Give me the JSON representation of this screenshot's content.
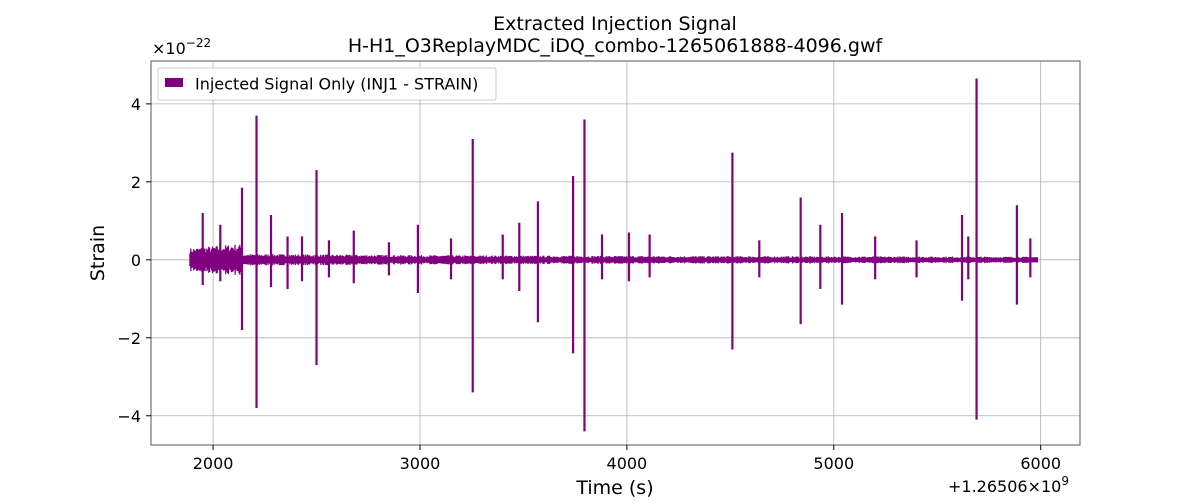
{
  "chart_data": {
    "type": "line",
    "title": "Extracted Injection Signal",
    "subtitle": "H-H1_O3ReplayMDC_iDQ_combo-1265061888-4096.gwf",
    "xlabel": "Time (s)",
    "ylabel": "Strain",
    "x_offset_label": "+1.26506×10",
    "x_offset_exponent": "9",
    "y_scale_label": "×10",
    "y_scale_exponent": "−22",
    "xlim": [
      1700,
      6190
    ],
    "ylim": [
      -4.75,
      5.1
    ],
    "x_ticks": [
      2000,
      3000,
      4000,
      5000,
      6000
    ],
    "y_ticks": [
      -4,
      -2,
      0,
      2,
      4
    ],
    "y_tick_labels": [
      "−4",
      "−2",
      "0",
      "2",
      "4"
    ],
    "grid": true,
    "legend_position": "top-left",
    "color": "#800080",
    "series": [
      {
        "name": "Injected Signal Only (INJ1 - STRAIN)",
        "x_range": [
          1888,
          5984
        ],
        "background": [
          {
            "x": 1888,
            "amp": 0.3
          },
          {
            "x": 2100,
            "amp": 0.4
          },
          {
            "x": 2135,
            "amp": 0.4
          },
          {
            "x": 2140,
            "amp": 0.15
          },
          {
            "x": 3000,
            "amp": 0.12
          },
          {
            "x": 4000,
            "amp": 0.1
          },
          {
            "x": 5000,
            "amp": 0.09
          },
          {
            "x": 5984,
            "amp": 0.08
          }
        ],
        "spikes": [
          {
            "x": 1950,
            "top": 1.2,
            "bottom": -0.65
          },
          {
            "x": 2035,
            "top": 0.9,
            "bottom": -0.55
          },
          {
            "x": 2140,
            "top": 1.85,
            "bottom": -1.8
          },
          {
            "x": 2210,
            "top": 3.7,
            "bottom": -3.8
          },
          {
            "x": 2280,
            "top": 1.15,
            "bottom": -0.7
          },
          {
            "x": 2360,
            "top": 0.6,
            "bottom": -0.75
          },
          {
            "x": 2430,
            "top": 0.6,
            "bottom": -0.55
          },
          {
            "x": 2500,
            "top": 2.3,
            "bottom": -2.7
          },
          {
            "x": 2560,
            "top": 0.5,
            "bottom": -0.45
          },
          {
            "x": 2680,
            "top": 0.75,
            "bottom": -0.6
          },
          {
            "x": 2850,
            "top": 0.45,
            "bottom": -0.4
          },
          {
            "x": 2990,
            "top": 0.9,
            "bottom": -0.85
          },
          {
            "x": 3150,
            "top": 0.55,
            "bottom": -0.5
          },
          {
            "x": 3255,
            "top": 3.1,
            "bottom": -3.4
          },
          {
            "x": 3400,
            "top": 0.65,
            "bottom": -0.5
          },
          {
            "x": 3480,
            "top": 0.95,
            "bottom": -0.8
          },
          {
            "x": 3570,
            "top": 1.5,
            "bottom": -1.6
          },
          {
            "x": 3740,
            "top": 2.15,
            "bottom": -2.4
          },
          {
            "x": 3795,
            "top": 3.6,
            "bottom": -4.4
          },
          {
            "x": 3880,
            "top": 0.65,
            "bottom": -0.5
          },
          {
            "x": 4010,
            "top": 0.7,
            "bottom": -0.55
          },
          {
            "x": 4110,
            "top": 0.65,
            "bottom": -0.45
          },
          {
            "x": 4510,
            "top": 2.75,
            "bottom": -2.3
          },
          {
            "x": 4640,
            "top": 0.5,
            "bottom": -0.45
          },
          {
            "x": 4840,
            "top": 1.6,
            "bottom": -1.65
          },
          {
            "x": 4935,
            "top": 0.9,
            "bottom": -0.75
          },
          {
            "x": 5040,
            "top": 1.2,
            "bottom": -1.15
          },
          {
            "x": 5200,
            "top": 0.6,
            "bottom": -0.5
          },
          {
            "x": 5400,
            "top": 0.5,
            "bottom": -0.45
          },
          {
            "x": 5620,
            "top": 1.15,
            "bottom": -1.05
          },
          {
            "x": 5650,
            "top": 0.6,
            "bottom": -0.5
          },
          {
            "x": 5690,
            "top": 4.65,
            "bottom": -4.1
          },
          {
            "x": 5885,
            "top": 1.4,
            "bottom": -1.15
          },
          {
            "x": 5950,
            "top": 0.55,
            "bottom": -0.45
          }
        ]
      }
    ]
  }
}
